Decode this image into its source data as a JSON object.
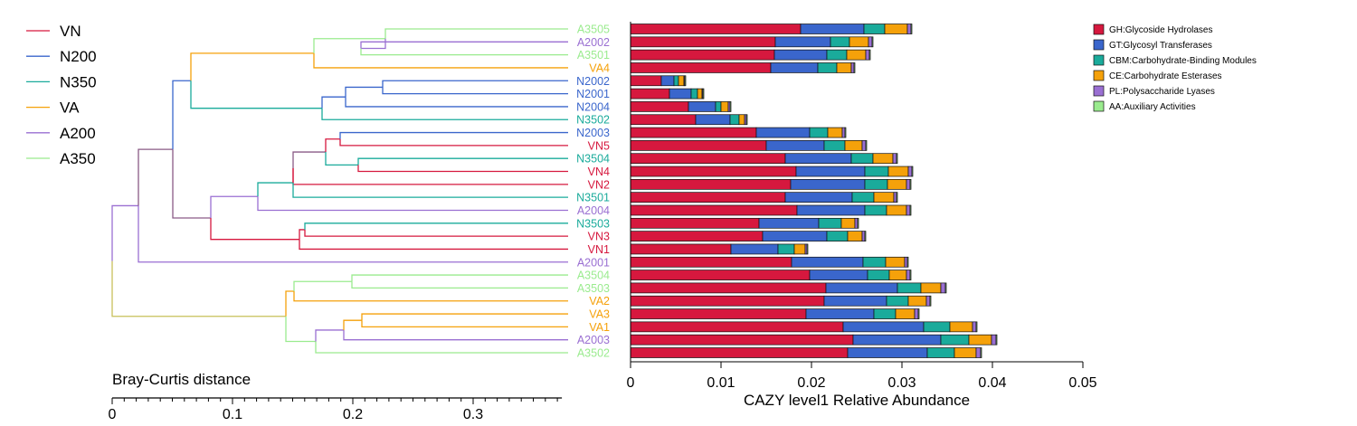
{
  "chart_data": {
    "type": "bar",
    "orientation": "horizontal-stacked",
    "dendrogram": {
      "axis_label": "Bray-Curtis distance",
      "ticks": [
        "0",
        "0.1",
        "0.2",
        "0.3"
      ],
      "range": [
        0,
        0.37
      ]
    },
    "groups": [
      {
        "name": "VN",
        "color": "#d6183e"
      },
      {
        "name": "N200",
        "color": "#3a66cc"
      },
      {
        "name": "N350",
        "color": "#1aab9b"
      },
      {
        "name": "VA",
        "color": "#f5a10a"
      },
      {
        "name": "A200",
        "color": "#9a6fd2"
      },
      {
        "name": "A350",
        "color": "#9aeb8e"
      }
    ],
    "categories": [
      "A3505",
      "A2002",
      "A3501",
      "VA4",
      "N2002",
      "N2001",
      "N2004",
      "N3502",
      "N2003",
      "VN5",
      "N3504",
      "VN4",
      "VN2",
      "N3501",
      "A2004",
      "N3503",
      "VN3",
      "VN1",
      "A2001",
      "A3504",
      "A3503",
      "VA2",
      "VA3",
      "VA1",
      "A2003",
      "A3502"
    ],
    "sample_groups": [
      "A350",
      "A200",
      "A350",
      "VA",
      "N200",
      "N200",
      "N200",
      "N350",
      "N200",
      "VN",
      "N350",
      "VN",
      "VN",
      "N350",
      "A200",
      "N350",
      "VN",
      "VN",
      "A200",
      "A350",
      "A350",
      "VA",
      "VA",
      "VA",
      "A200",
      "A350"
    ],
    "series": [
      {
        "name": "GH:Glycoside Hydrolases",
        "color": "#d6183e",
        "values": [
          0.0188,
          0.016,
          0.0159,
          0.0155,
          0.0034,
          0.0043,
          0.0064,
          0.0072,
          0.0139,
          0.015,
          0.0171,
          0.0183,
          0.0177,
          0.0171,
          0.0184,
          0.0142,
          0.0146,
          0.0111,
          0.0178,
          0.0198,
          0.0216,
          0.0214,
          0.0194,
          0.0235,
          0.0246,
          0.024
        ]
      },
      {
        "name": "GT:Glycosyl Transferases",
        "color": "#3a66cc",
        "values": [
          0.007,
          0.0061,
          0.0058,
          0.0052,
          0.0014,
          0.0024,
          0.003,
          0.0038,
          0.0059,
          0.0064,
          0.0073,
          0.0076,
          0.0082,
          0.0074,
          0.0075,
          0.0066,
          0.0071,
          0.0052,
          0.0079,
          0.0064,
          0.0079,
          0.0069,
          0.0075,
          0.0089,
          0.0097,
          0.0088
        ]
      },
      {
        "name": "CBM:Carbohydrate-Binding Modules",
        "color": "#1aab9b",
        "values": [
          0.0023,
          0.0021,
          0.0022,
          0.0021,
          0.0005,
          0.0007,
          0.0006,
          0.001,
          0.002,
          0.0023,
          0.0024,
          0.0026,
          0.0025,
          0.0024,
          0.0024,
          0.0025,
          0.0023,
          0.0018,
          0.0025,
          0.0024,
          0.0026,
          0.0024,
          0.0024,
          0.0029,
          0.0031,
          0.003
        ]
      },
      {
        "name": "CE:Carbohydrate Esterases",
        "color": "#f5a10a",
        "values": [
          0.0025,
          0.0021,
          0.0021,
          0.0016,
          0.0006,
          0.0005,
          0.0008,
          0.0006,
          0.0016,
          0.0019,
          0.0022,
          0.0022,
          0.0021,
          0.0022,
          0.0022,
          0.0015,
          0.0016,
          0.0012,
          0.0021,
          0.0019,
          0.0022,
          0.002,
          0.0021,
          0.0025,
          0.0025,
          0.0024
        ]
      },
      {
        "name": "PL:Polysaccharide Lyases",
        "color": "#9a6fd2",
        "values": [
          0.0004,
          0.0004,
          0.0004,
          0.0003,
          0.0001,
          0.0001,
          0.0002,
          0.0002,
          0.0003,
          0.0004,
          0.0004,
          0.0004,
          0.0004,
          0.0003,
          0.0004,
          0.0003,
          0.0003,
          0.0002,
          0.0003,
          0.0004,
          0.0005,
          0.0004,
          0.0004,
          0.0004,
          0.0005,
          0.0005
        ]
      },
      {
        "name": "AA:Auxiliary Activities",
        "color": "#9aeb8e",
        "values": [
          0.0001,
          0.0001,
          0.0001,
          0.0001,
          0.0001,
          0.0001,
          0.0001,
          0.0001,
          0.0001,
          0.0001,
          0.0001,
          0.0001,
          0.0001,
          0.0001,
          0.0001,
          0.0001,
          0.0001,
          0.0001,
          0.0001,
          0.0001,
          0.0001,
          0.0001,
          0.0001,
          0.0001,
          0.0001,
          0.0001
        ]
      }
    ],
    "xlabel": "CAZY level1 Relative Abundance",
    "xlim": [
      0,
      0.05
    ],
    "xticks": [
      "0",
      "0.01",
      "0.02",
      "0.03",
      "0.04",
      "0.05"
    ],
    "grid": false,
    "legend_position": "top-right"
  }
}
